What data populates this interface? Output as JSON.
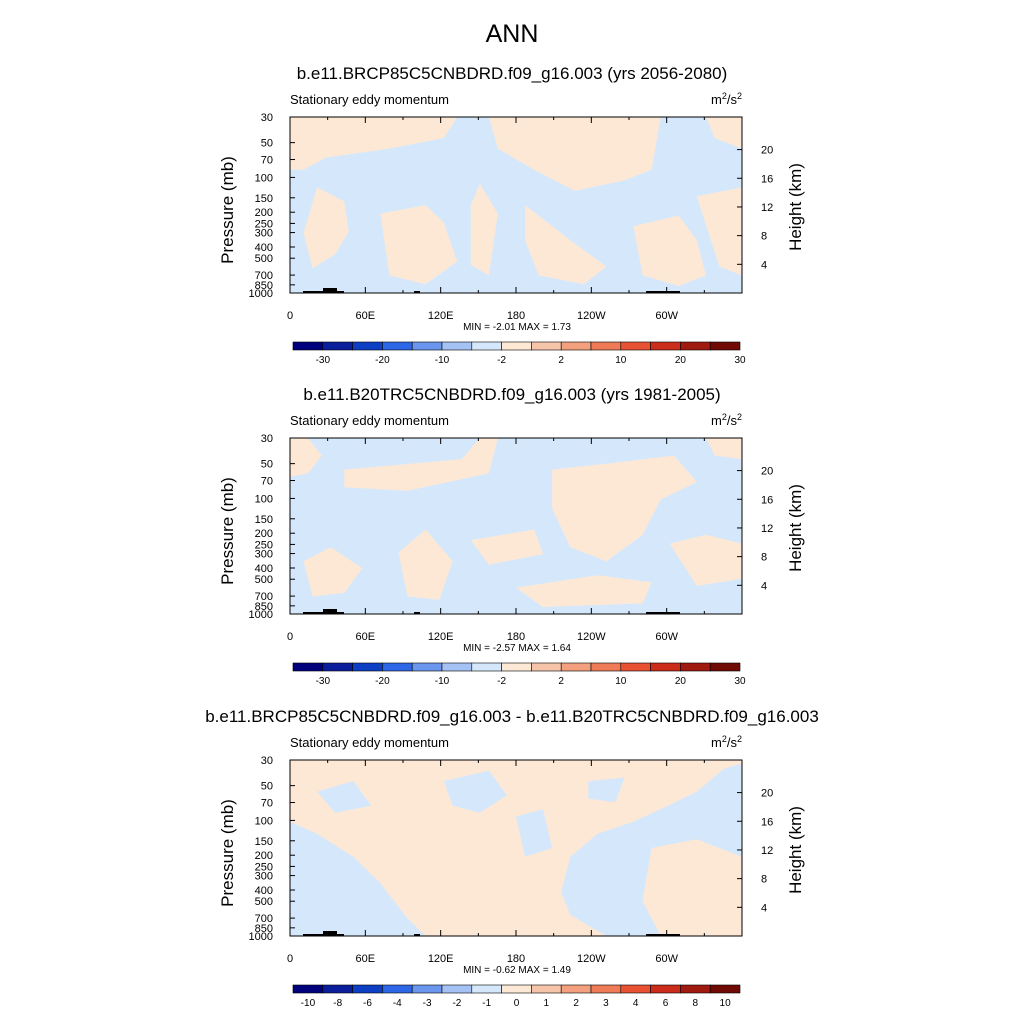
{
  "main_title": "ANN",
  "colors": {
    "light_blue": "#d5e8fb",
    "light_peach": "#fde8d6",
    "frame": "#000000",
    "land": "#000000"
  },
  "chart_data": [
    {
      "type": "heatmap",
      "title": "b.e11.BRCP85C5CNBDRD.f09_g16.003 (yrs 2056-2080)",
      "subtitle": "Stationary eddy momentum",
      "units_label": "m",
      "units_sup": "2",
      "units_label2": "/s",
      "units_sup2": "2",
      "ylabel": "Pressure (mb)",
      "ylabel_right": "Height (km)",
      "y_ticks": [
        "30",
        "50",
        "70",
        "100",
        "150",
        "200",
        "250",
        "300",
        "400",
        "500",
        "700",
        "850",
        "1000"
      ],
      "y_ticks_right": [
        "20",
        "16",
        "12",
        "8",
        "4"
      ],
      "x_ticks": [
        "0",
        "60E",
        "120E",
        "180",
        "120W",
        "60W"
      ],
      "stats_text": "MIN = -2.01  MAX = 1.73",
      "colorbar_labels": [
        "-30",
        "-20",
        "-10",
        "-2",
        "2",
        "10",
        "20",
        "30"
      ],
      "dominant_value_ranges": [
        "-2 to 0",
        "0 to 2"
      ]
    },
    {
      "type": "heatmap",
      "title": "b.e11.B20TRC5CNBDRD.f09_g16.003 (yrs 1981-2005)",
      "subtitle": "Stationary eddy momentum",
      "units_label": "m",
      "units_sup": "2",
      "units_label2": "/s",
      "units_sup2": "2",
      "ylabel": "Pressure (mb)",
      "ylabel_right": "Height (km)",
      "y_ticks": [
        "30",
        "50",
        "70",
        "100",
        "150",
        "200",
        "250",
        "300",
        "400",
        "500",
        "700",
        "850",
        "1000"
      ],
      "y_ticks_right": [
        "20",
        "16",
        "12",
        "8",
        "4"
      ],
      "x_ticks": [
        "0",
        "60E",
        "120E",
        "180",
        "120W",
        "60W"
      ],
      "stats_text": "MIN = -2.57  MAX = 1.64",
      "colorbar_labels": [
        "-30",
        "-20",
        "-10",
        "-2",
        "2",
        "10",
        "20",
        "30"
      ],
      "dominant_value_ranges": [
        "-2 to 0",
        "0 to 2"
      ]
    },
    {
      "type": "heatmap",
      "title": "b.e11.BRCP85C5CNBDRD.f09_g16.003 - b.e11.B20TRC5CNBDRD.f09_g16.003",
      "subtitle": "Stationary eddy momentum",
      "units_label": "m",
      "units_sup": "2",
      "units_label2": "/s",
      "units_sup2": "2",
      "ylabel": "Pressure (mb)",
      "ylabel_right": "Height (km)",
      "y_ticks": [
        "30",
        "50",
        "70",
        "100",
        "150",
        "200",
        "250",
        "300",
        "400",
        "500",
        "700",
        "850",
        "1000"
      ],
      "y_ticks_right": [
        "20",
        "16",
        "12",
        "8",
        "4"
      ],
      "x_ticks": [
        "0",
        "60E",
        "120E",
        "180",
        "120W",
        "60W"
      ],
      "stats_text": "MIN = -0.62  MAX = 1.49",
      "colorbar_labels": [
        "-10",
        "-8",
        "-6",
        "-4",
        "-3",
        "-2",
        "-1",
        "0",
        "1",
        "2",
        "3",
        "4",
        "6",
        "8",
        "10"
      ],
      "dominant_value_ranges": [
        "-1 to 0",
        "0 to 1"
      ]
    }
  ],
  "colorbar_colors": [
    "#00007d",
    "#0a1e9b",
    "#0d3fc4",
    "#2d66e6",
    "#6a96ee",
    "#a5c2f4",
    "#d5e8fb",
    "#fde8d6",
    "#f6c4a8",
    "#f2a07e",
    "#ee7a56",
    "#e85233",
    "#cc2c1a",
    "#a11a10",
    "#700a04"
  ]
}
